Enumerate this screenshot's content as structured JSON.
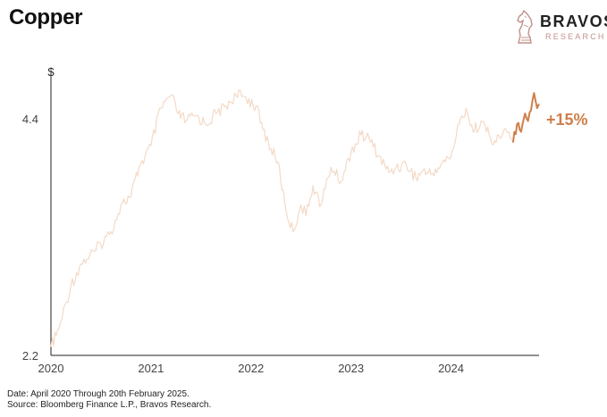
{
  "header": {
    "title": "Copper",
    "brand_name": "BRAVOS",
    "brand_sub": "RESEARCH"
  },
  "chart_data": {
    "type": "line",
    "title": "Copper",
    "ylabel": "$",
    "xlabel": "",
    "xlim": [
      2020.0,
      2024.88
    ],
    "ylim": [
      2.2,
      4.7
    ],
    "yticks": [
      2.2,
      4.4
    ],
    "ytick_labels": [
      "2.2",
      "4.4"
    ],
    "xticks": [
      2020,
      2021,
      2022,
      2023,
      2024
    ],
    "xtick_labels": [
      "2020",
      "2021",
      "2022",
      "2023",
      "2024"
    ],
    "grid": false,
    "colors": {
      "history": "#f3dac7",
      "recent": "#cf7f4a"
    },
    "series": [
      {
        "name": "",
        "x": [
          2020.0,
          2020.08,
          2020.2,
          2020.3,
          2020.45,
          2020.6,
          2020.7,
          2020.8,
          2020.88,
          2021.0,
          2021.1,
          2021.2,
          2021.27,
          2021.35,
          2021.45,
          2021.55,
          2021.65,
          2021.75,
          2021.85,
          2021.95,
          2022.05,
          2022.12,
          2022.2,
          2022.27,
          2022.35,
          2022.42,
          2022.5,
          2022.55,
          2022.62,
          2022.7,
          2022.8,
          2022.9,
          2023.0,
          2023.1,
          2023.18,
          2023.28,
          2023.38,
          2023.45,
          2023.55,
          2023.65,
          2023.72,
          2023.8,
          2023.9,
          2024.0,
          2024.08,
          2024.15,
          2024.22,
          2024.3,
          2024.38,
          2024.45,
          2024.55,
          2024.62
        ],
        "y": [
          2.28,
          2.45,
          2.85,
          3.05,
          3.18,
          3.35,
          3.6,
          3.68,
          3.95,
          4.15,
          4.5,
          4.62,
          4.45,
          4.38,
          4.43,
          4.35,
          4.45,
          4.52,
          4.62,
          4.6,
          4.52,
          4.3,
          4.12,
          4.0,
          3.55,
          3.35,
          3.6,
          3.5,
          3.78,
          3.6,
          3.95,
          3.82,
          4.1,
          4.25,
          4.22,
          4.05,
          3.9,
          3.95,
          3.98,
          3.85,
          3.92,
          3.88,
          3.98,
          4.05,
          4.35,
          4.5,
          4.28,
          4.38,
          4.25,
          4.18,
          4.3,
          4.18
        ]
      },
      {
        "name": "",
        "x": [
          2024.62,
          2024.66,
          2024.7,
          2024.74,
          2024.77,
          2024.8,
          2024.83,
          2024.86,
          2024.88
        ],
        "y": [
          4.18,
          4.35,
          4.28,
          4.45,
          4.38,
          4.48,
          4.64,
          4.5,
          4.54
        ]
      }
    ],
    "annotations": [
      {
        "text": "+15%",
        "x": 2024.88,
        "y": 4.4
      }
    ]
  },
  "footnote": {
    "line1": "Date: April 2020 Through 20th February 2025.",
    "line2": "Source: Bloomberg Finance L.P., Bravos Research."
  }
}
